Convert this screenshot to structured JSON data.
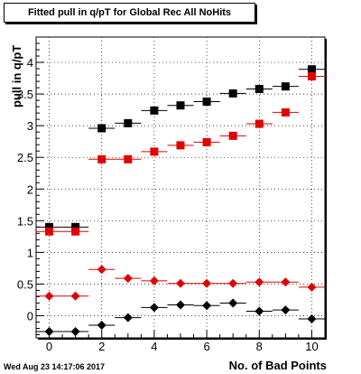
{
  "chart_data": {
    "type": "scatter",
    "title": "Fitted pull in q/pT for Global Rec All NoHits",
    "xlabel": "No. of Bad Points",
    "ylabel": "pull in q/pT",
    "xlim": [
      -0.5,
      10.5
    ],
    "ylim": [
      -0.35,
      4.4
    ],
    "xticks": [
      0,
      2,
      4,
      6,
      8,
      10
    ],
    "yticks": [
      0,
      0.5,
      1,
      1.5,
      2,
      2.5,
      3,
      3.5,
      4
    ],
    "ytick_labels": [
      "0",
      "0.5",
      "1",
      "1.5",
      "2",
      "2.5",
      "3",
      "3.5",
      "4"
    ],
    "grid": true,
    "series": [
      {
        "marker": "square",
        "color": "#000000",
        "x": [
          0,
          1,
          2,
          3,
          4,
          5,
          6,
          7,
          8,
          9,
          10
        ],
        "y": [
          1.4,
          1.4,
          2.96,
          3.04,
          3.24,
          3.32,
          3.38,
          3.51,
          3.58,
          3.62,
          3.89
        ]
      },
      {
        "marker": "square",
        "color": "#e00000",
        "x": [
          0,
          1,
          2,
          3,
          4,
          5,
          6,
          7,
          8,
          9,
          10
        ],
        "y": [
          1.33,
          1.33,
          2.47,
          2.47,
          2.59,
          2.69,
          2.74,
          2.84,
          3.03,
          3.21,
          3.78
        ]
      },
      {
        "marker": "diamond",
        "color": "#e00000",
        "x": [
          0,
          1,
          2,
          3,
          4,
          5,
          6,
          7,
          8,
          9,
          10
        ],
        "y": [
          0.31,
          0.31,
          0.73,
          0.59,
          0.55,
          0.51,
          0.51,
          0.51,
          0.53,
          0.53,
          0.45
        ]
      },
      {
        "marker": "diamond",
        "color": "#000000",
        "x": [
          0,
          1,
          2,
          3,
          4,
          5,
          6,
          7,
          8,
          9,
          10
        ],
        "y": [
          -0.25,
          -0.25,
          -0.15,
          -0.03,
          0.13,
          0.17,
          0.16,
          0.2,
          0.07,
          0.09,
          -0.05
        ]
      }
    ]
  },
  "footer": {
    "timestamp": "Wed Aug 23 14:17:06 2017"
  }
}
